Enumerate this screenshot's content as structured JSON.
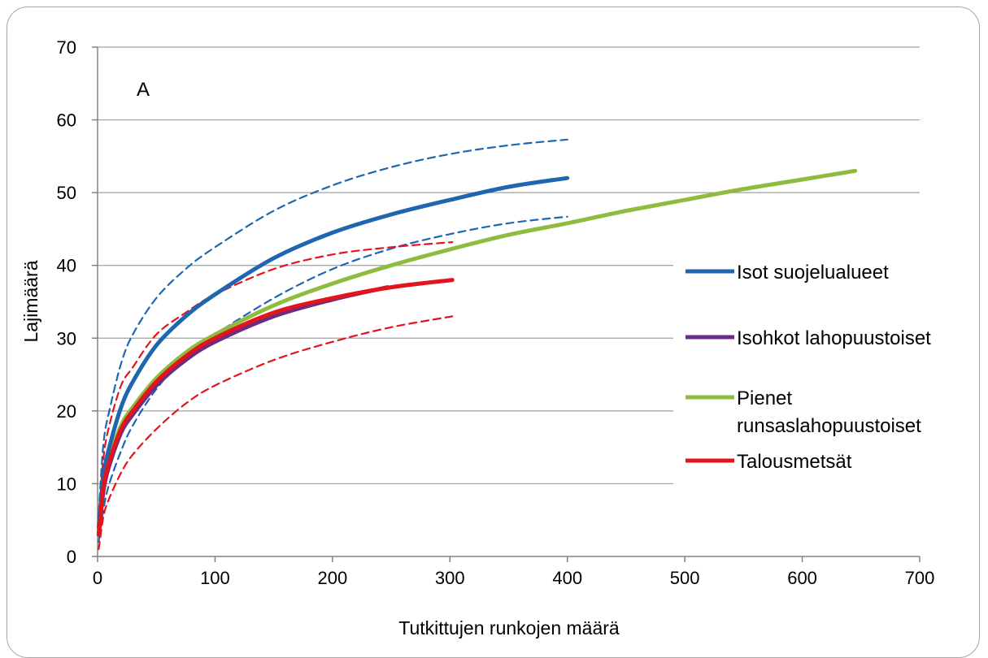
{
  "chart_data": {
    "type": "line",
    "title": "",
    "panel_label": "A",
    "xlabel": "Tutkittujen runkojen määrä",
    "ylabel": "Lajimäärä",
    "xlim": [
      0,
      700
    ],
    "ylim": [
      0,
      70
    ],
    "x_ticks": [
      "0",
      "100",
      "200",
      "300",
      "400",
      "500",
      "600",
      "700"
    ],
    "y_ticks": [
      "0",
      "10",
      "20",
      "30",
      "40",
      "50",
      "60",
      "70"
    ],
    "grid": "horizontal",
    "legend_position": "right",
    "series": [
      {
        "name": "Isot suojelualueet",
        "color": "#1f66b0",
        "style": "solid",
        "x": [
          1,
          5,
          10,
          20,
          30,
          50,
          75,
          100,
          150,
          200,
          250,
          300,
          350,
          400
        ],
        "y": [
          4,
          11,
          15,
          20.5,
          24,
          29,
          33,
          36,
          41,
          44.5,
          47,
          49,
          50.8,
          52
        ],
        "ci_lower": [
          2,
          6.5,
          10,
          14.5,
          18,
          23,
          27.5,
          30.5,
          35.5,
          39.5,
          42.3,
          44.3,
          45.8,
          46.7
        ],
        "ci_upper": [
          6,
          15.5,
          20,
          26.5,
          30.5,
          35.5,
          39.5,
          42.5,
          47.5,
          51,
          53.5,
          55.3,
          56.5,
          57.3
        ]
      },
      {
        "name": "Isohkot lahopuustoiset",
        "color": "#6a2c84",
        "style": "solid",
        "x": [
          1,
          5,
          10,
          20,
          30,
          50,
          75,
          100,
          150,
          200,
          247
        ],
        "y": [
          3,
          9,
          12.5,
          17,
          19.5,
          23.5,
          27,
          29.5,
          33,
          35.3,
          37
        ]
      },
      {
        "name": "Pienet runsaslahopuustoiset",
        "color": "#8fbc3f",
        "style": "solid",
        "x": [
          1,
          5,
          10,
          20,
          30,
          50,
          75,
          100,
          150,
          200,
          250,
          300,
          350,
          400,
          450,
          500,
          550,
          600,
          645
        ],
        "y": [
          3,
          10,
          13.5,
          18,
          20.5,
          24.5,
          28,
          30.5,
          34.5,
          37.5,
          40,
          42.2,
          44.2,
          45.8,
          47.5,
          49,
          50.5,
          51.8,
          53
        ]
      },
      {
        "name": "Talousmetsät",
        "color": "#e3141b",
        "style": "solid",
        "x": [
          1,
          5,
          10,
          20,
          30,
          50,
          75,
          100,
          150,
          200,
          250,
          302
        ],
        "y": [
          3,
          9.5,
          13,
          17.5,
          20,
          24,
          27.5,
          30,
          33.5,
          35.5,
          37,
          38
        ],
        "ci_lower": [
          1,
          5.5,
          8,
          11.5,
          14,
          17.5,
          21,
          23.5,
          27,
          29.5,
          31.5,
          33
        ],
        "ci_upper": [
          5,
          13.5,
          18,
          23.5,
          26,
          30.5,
          33.5,
          36,
          39.5,
          41.5,
          42.5,
          43.2
        ]
      }
    ]
  }
}
